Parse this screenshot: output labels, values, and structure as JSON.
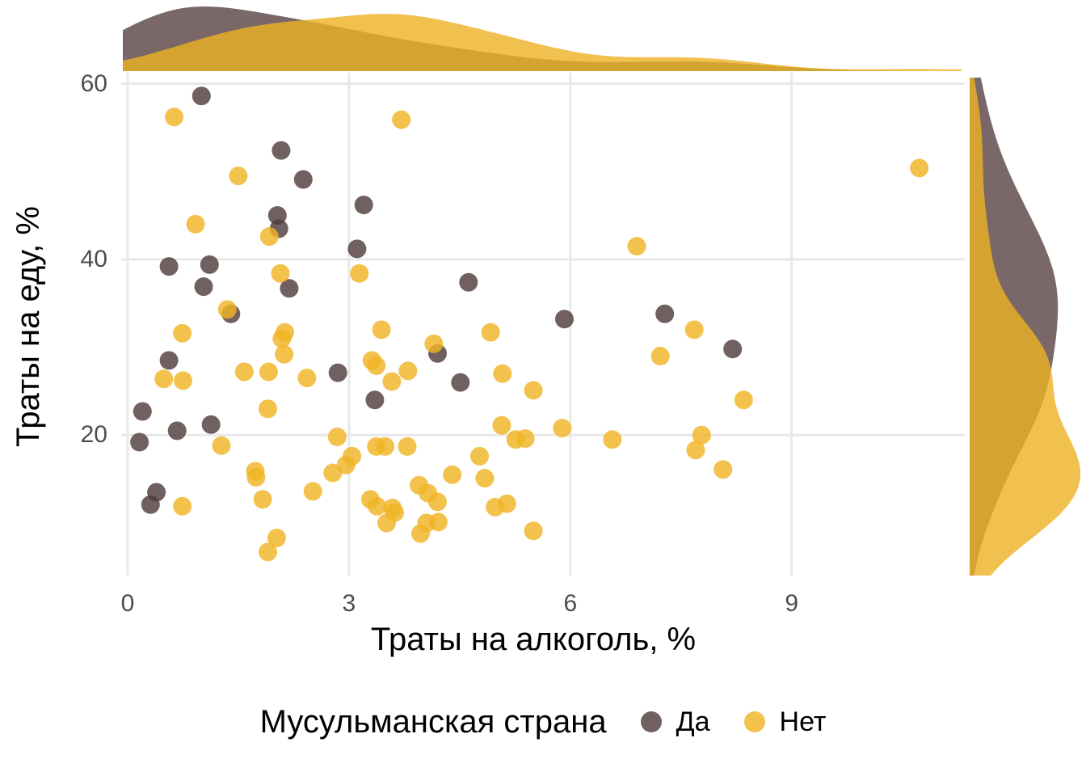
{
  "chart_data": {
    "type": "scatter",
    "subtype": "scatter-with-marginal-densities",
    "title": "",
    "xlabel": "Траты на алкоголь, %",
    "ylabel": "Траты на еду, %",
    "x_ticks": [
      0,
      3,
      6,
      9
    ],
    "y_ticks": [
      60,
      40,
      20
    ],
    "xlim": [
      -0.1,
      11.3
    ],
    "ylim": [
      4,
      61.5
    ],
    "grid": true,
    "marginals": {
      "top": "density of x per group",
      "right": "density of y per group"
    },
    "legend": {
      "title": "Мусульманская страна",
      "position": "bottom"
    },
    "colors": {
      "grid": "#e8e8e8",
      "tick_label": "#4d4d4d",
      "axis_title": "#000000",
      "background": "#ffffff"
    },
    "series": [
      {
        "name": "Да",
        "color": "rgba(82,61,61,0.82)",
        "density_fill": "rgba(89,66,67,0.8)",
        "points": [
          [
            1.0,
            58.6
          ],
          [
            2.08,
            52.4
          ],
          [
            2.38,
            49.1
          ],
          [
            3.2,
            46.2
          ],
          [
            2.03,
            45.0
          ],
          [
            2.05,
            43.5
          ],
          [
            3.11,
            41.2
          ],
          [
            0.56,
            39.2
          ],
          [
            1.11,
            39.4
          ],
          [
            1.03,
            36.9
          ],
          [
            2.19,
            36.7
          ],
          [
            4.62,
            37.4
          ],
          [
            1.4,
            33.8
          ],
          [
            5.92,
            33.2
          ],
          [
            7.28,
            33.8
          ],
          [
            4.2,
            29.3
          ],
          [
            8.2,
            29.8
          ],
          [
            0.56,
            28.5
          ],
          [
            2.85,
            27.1
          ],
          [
            4.51,
            26.0
          ],
          [
            3.35,
            24.0
          ],
          [
            0.2,
            22.7
          ],
          [
            1.13,
            21.2
          ],
          [
            0.67,
            20.5
          ],
          [
            0.16,
            19.2
          ],
          [
            0.39,
            13.5
          ],
          [
            0.31,
            12.1
          ]
        ]
      },
      {
        "name": "Нет",
        "color": "rgba(240,180,37,0.82)",
        "density_fill": "rgba(236,177,34,0.8)",
        "points": [
          [
            0.63,
            56.2
          ],
          [
            3.71,
            55.9
          ],
          [
            10.73,
            50.4
          ],
          [
            1.5,
            49.5
          ],
          [
            0.92,
            44.0
          ],
          [
            1.92,
            42.6
          ],
          [
            6.9,
            41.5
          ],
          [
            2.07,
            38.4
          ],
          [
            3.14,
            38.4
          ],
          [
            1.35,
            34.3
          ],
          [
            3.44,
            32.0
          ],
          [
            7.68,
            32.0
          ],
          [
            0.74,
            31.6
          ],
          [
            2.13,
            31.7
          ],
          [
            2.09,
            31.0
          ],
          [
            4.92,
            31.7
          ],
          [
            4.15,
            30.4
          ],
          [
            2.12,
            29.2
          ],
          [
            7.22,
            29.0
          ],
          [
            3.31,
            28.5
          ],
          [
            3.37,
            27.9
          ],
          [
            3.8,
            27.3
          ],
          [
            1.58,
            27.2
          ],
          [
            1.91,
            27.2
          ],
          [
            5.08,
            27.0
          ],
          [
            2.43,
            26.5
          ],
          [
            0.49,
            26.4
          ],
          [
            0.75,
            26.2
          ],
          [
            3.58,
            26.1
          ],
          [
            5.5,
            25.1
          ],
          [
            8.35,
            24.0
          ],
          [
            1.9,
            23.0
          ],
          [
            5.07,
            21.1
          ],
          [
            5.89,
            20.8
          ],
          [
            7.78,
            20.0
          ],
          [
            2.84,
            19.8
          ],
          [
            5.26,
            19.5
          ],
          [
            5.39,
            19.6
          ],
          [
            6.57,
            19.5
          ],
          [
            1.27,
            18.8
          ],
          [
            3.37,
            18.7
          ],
          [
            3.49,
            18.7
          ],
          [
            3.79,
            18.7
          ],
          [
            7.7,
            18.3
          ],
          [
            3.04,
            17.6
          ],
          [
            4.77,
            17.6
          ],
          [
            2.96,
            16.6
          ],
          [
            8.07,
            16.1
          ],
          [
            1.73,
            15.9
          ],
          [
            2.78,
            15.7
          ],
          [
            1.74,
            15.2
          ],
          [
            4.84,
            15.1
          ],
          [
            4.4,
            15.5
          ],
          [
            3.95,
            14.3
          ],
          [
            4.07,
            13.4
          ],
          [
            2.51,
            13.6
          ],
          [
            1.83,
            12.7
          ],
          [
            4.2,
            12.4
          ],
          [
            5.14,
            12.2
          ],
          [
            0.74,
            11.9
          ],
          [
            3.29,
            12.7
          ],
          [
            3.38,
            11.9
          ],
          [
            3.59,
            11.7
          ],
          [
            3.62,
            11.2
          ],
          [
            4.98,
            11.8
          ],
          [
            3.51,
            10.0
          ],
          [
            4.05,
            10.0
          ],
          [
            4.21,
            10.1
          ],
          [
            5.5,
            9.1
          ],
          [
            3.97,
            8.8
          ],
          [
            2.02,
            8.3
          ],
          [
            1.9,
            6.7
          ]
        ]
      }
    ]
  }
}
